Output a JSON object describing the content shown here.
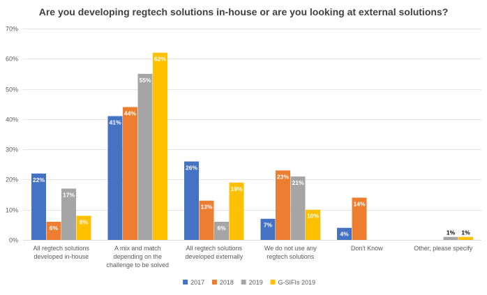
{
  "chart_data": {
    "type": "bar",
    "title": "Are you developing regtech solutions in-house or are you looking at external solutions?",
    "xlabel": "",
    "ylabel": "",
    "ylim": [
      0,
      70
    ],
    "y_ticks": [
      "0%",
      "10%",
      "20%",
      "30%",
      "40%",
      "50%",
      "60%",
      "70%"
    ],
    "y_unit": "%",
    "grid": true,
    "legend_position": "bottom",
    "categories": [
      [
        "All regtech solutions",
        "developed in-house"
      ],
      [
        "A mix and match",
        "depending on the",
        "challenge to be solved"
      ],
      [
        "All regtech solutions",
        "developed externally"
      ],
      [
        "We do not use any",
        "regtech solutions"
      ],
      [
        "Don't Know"
      ],
      [
        "Other, please specify"
      ]
    ],
    "series": [
      {
        "name": "2017",
        "color": "#4472C4",
        "values": [
          22,
          41,
          26,
          7,
          4,
          null
        ]
      },
      {
        "name": "2018",
        "color": "#ED7D31",
        "values": [
          6,
          44,
          13,
          23,
          14,
          null
        ]
      },
      {
        "name": "2019",
        "color": "#A5A5A5",
        "values": [
          17,
          55,
          6,
          21,
          null,
          1
        ]
      },
      {
        "name": "G-SIFIs 2019",
        "color": "#FFC000",
        "values": [
          8,
          62,
          19,
          10,
          null,
          1
        ]
      }
    ],
    "data_labels": [
      [
        "22%",
        "41%",
        "26%",
        "7%",
        "4%",
        null
      ],
      [
        "6%",
        "44%",
        "13%",
        "23%",
        "14%",
        null
      ],
      [
        "17%",
        "55%",
        "6%",
        "21%",
        null,
        "1%"
      ],
      [
        "8%",
        "62%",
        "19%",
        "10%",
        null,
        "1%"
      ]
    ]
  }
}
